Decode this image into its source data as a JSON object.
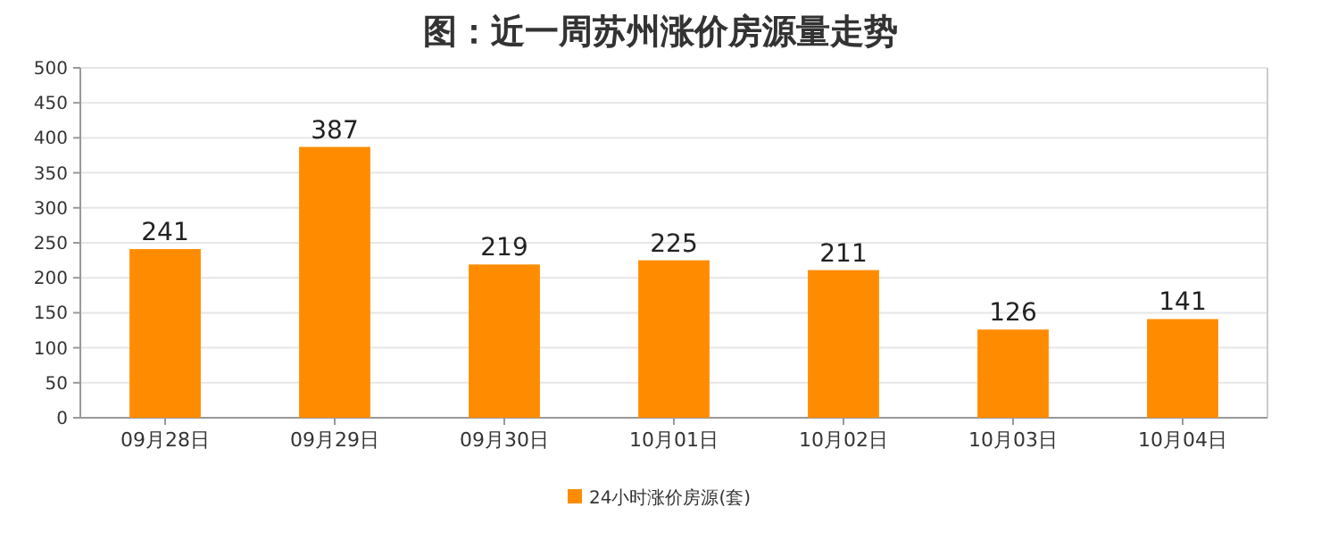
{
  "chart_data": {
    "type": "bar",
    "title": "图：近一周苏州涨价房源量走势",
    "categories": [
      "09月28日",
      "09月29日",
      "09月30日",
      "10月01日",
      "10月02日",
      "10月03日",
      "10月04日"
    ],
    "series": [
      {
        "name": "24小时涨价房源(套)",
        "color": "#ff8c00",
        "values": [
          241,
          387,
          219,
          225,
          211,
          126,
          141
        ]
      }
    ],
    "ylim": [
      0,
      500
    ],
    "yticks": [
      0,
      50,
      100,
      150,
      200,
      250,
      300,
      350,
      400,
      450,
      500
    ],
    "grid": "y",
    "legend": "bottom",
    "data_labels": true
  }
}
